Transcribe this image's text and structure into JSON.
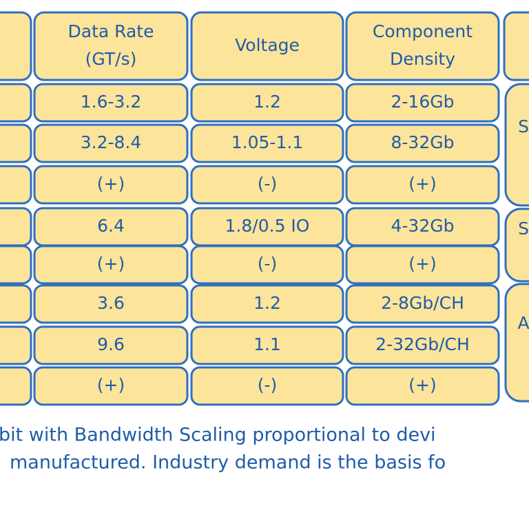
{
  "header": {
    "columns": [
      [
        "Data Rate",
        "(GT/s)"
      ],
      [
        "Voltage"
      ],
      [
        "Component",
        "Density"
      ]
    ]
  },
  "table": {
    "rows": [
      [
        "1.6-3.2",
        "1.2",
        "2-16Gb"
      ],
      [
        "3.2-8.4",
        "1.05-1.1",
        "8-32Gb"
      ],
      [
        "(+)",
        "(-)",
        "(+)"
      ],
      [
        "6.4",
        "1.8/0.5 IO",
        "4-32Gb"
      ],
      [
        "(+)",
        "(-)",
        "(+)"
      ],
      [
        "3.6",
        "1.2",
        "2-8Gb/CH"
      ],
      [
        "9.6",
        "1.1",
        "2-32Gb/CH"
      ],
      [
        "(+)",
        "(-)",
        "(+)"
      ]
    ]
  },
  "side_groups": [
    "S",
    "S",
    "A"
  ],
  "footnote": [
    "bit with Bandwidth Scaling proportional to devi",
    "manufactured. Industry demand is the basis fo"
  ]
}
